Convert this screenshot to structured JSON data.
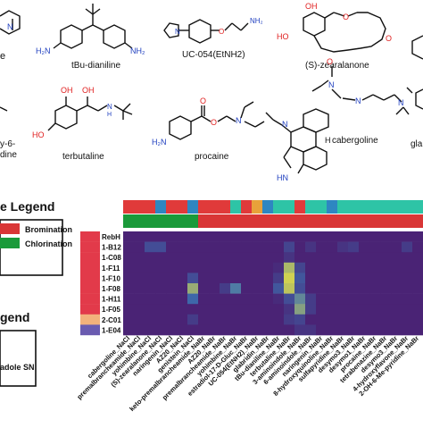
{
  "molecules": {
    "top_left_fragment": "e",
    "tbu_dianiline": {
      "name": "tBu-dianiline",
      "nh2_left": "H₂N",
      "nh2_right": "NH₂"
    },
    "uc054": {
      "name": "UC-054(EtNH2)",
      "nh2": "NH₂",
      "n": "N"
    },
    "zearalanone": {
      "name": "(S)-zearalanone",
      "oh_top": "OH",
      "oh_left": "HO",
      "o_ring": "O",
      "o_ketone": "O"
    },
    "left_fragment_bottom": {
      "line1": "y-6-",
      "line2": "dine"
    },
    "terbutaline": {
      "name": "terbutaline",
      "oh_top": "OH",
      "ho_left": "HO",
      "oh_mid": "OH",
      "nh": "N\nH"
    },
    "procaine": {
      "name": "procaine",
      "h2n": "H₂N",
      "o": "O",
      "n": "N"
    },
    "cabergoline": {
      "name": "cabergoline",
      "o": "O",
      "n_amide": "N",
      "h_amide": "H",
      "n_ring": "N",
      "n_dim": "N",
      "h_ring": "H",
      "hn": "HN"
    },
    "right_fragment": "gla"
  },
  "legends": {
    "reaction_legend_title": "e Legend",
    "bromination": "Bromination",
    "chlorination": "Chlorination",
    "enzyme_legend_title": "gend",
    "enzyme_legend_item": "adole SN"
  },
  "colors": {
    "bromination": "#d93636",
    "chlorination": "#1a9a3a",
    "heat_low": "#4b1a6e",
    "heat_mid": "#3d6fb0",
    "heat_high": "#f4e93a",
    "enzyme_red": "#e23a4a",
    "enzyme_peach": "#f2b27c",
    "enzyme_purple": "#6a5bb0"
  },
  "heatmap": {
    "row_labels": [
      "RebH",
      "1-B12",
      "1-C08",
      "1-F11",
      "1-F10",
      "1-F08",
      "1-H11",
      "1-F05",
      "2-C01",
      "1-E04"
    ],
    "row_group_colors": [
      "#e23a4a",
      "#e23a4a",
      "#e23a4a",
      "#e23a4a",
      "#e23a4a",
      "#e23a4a",
      "#e23a4a",
      "#e23a4a",
      "#f2b27c",
      "#6a5bb0"
    ],
    "column_labels": [
      "cabergoline_NaCl",
      "premalbrancheamide_NaCl",
      "yohimbine_NaCl",
      "(S)-zearalanone_NaCl",
      "naringenin_NaCl",
      "AZ20_NaCl",
      "genistein_NaCl",
      "keto-premalbrancheamide_NaBr",
      "AZ20_NaBr",
      "premalbrancheamide_NaBr",
      "yohimbine_NaBr",
      "estradiol-17-D-Gluc_NaBr",
      "UC-054(EtNH2)_NaBr",
      "glabridin_NaBr",
      "tBu-dianiline_NaBr",
      "terbutaline_NaBr",
      "3-aminoindole_NaBr",
      "6-aminoindole_NaBr",
      "naringenin_NaBr",
      "8-hydroxyquinoline_NaBr",
      "sulfapyridine_NaBr",
      "desymo3_NaBr",
      "desymo1_NaBr",
      "procaine_NaBr",
      "tetrabenazine_NaBr",
      "desymo3_NaBr",
      "4-hydroxyflavone_NaBr",
      "2-OH-6-Me-pyridine_NaBr"
    ],
    "reaction_row": [
      "C",
      "C",
      "C",
      "C",
      "C",
      "C",
      "C",
      "B",
      "B",
      "B",
      "B",
      "B",
      "B",
      "B",
      "B",
      "B",
      "B",
      "B",
      "B",
      "B",
      "B",
      "B",
      "B",
      "B",
      "B",
      "B",
      "B",
      "B"
    ],
    "enzyme_row": [
      "#e03a3a",
      "#e03a3a",
      "#e03a3a",
      "#2e86c1",
      "#e03a3a",
      "#e03a3a",
      "#2e86c1",
      "#e03a3a",
      "#e03a3a",
      "#e03a3a",
      "#2ec4a6",
      "#e03a3a",
      "#e8a13a",
      "#2e86c1",
      "#2ec4a6",
      "#2ec4a6",
      "#e03a3a",
      "#2ec4a6",
      "#2ec4a6",
      "#2e86c1",
      "#2ec4a6",
      "#2ec4a6",
      "#2ec4a6",
      "#2ec4a6",
      "#2ec4a6",
      "#2ec4a6",
      "#2ec4a6",
      "#2ec4a6"
    ],
    "values": [
      [
        0.05,
        0.05,
        0.05,
        0.05,
        0.05,
        0.05,
        0.05,
        0.05,
        0.05,
        0.05,
        0.05,
        0.05,
        0.05,
        0.05,
        0.05,
        0.05,
        0.05,
        0.05,
        0.05,
        0.05,
        0.05,
        0.05,
        0.05,
        0.05,
        0.05,
        0.05,
        0.05,
        0.05
      ],
      [
        0.05,
        0.05,
        0.3,
        0.3,
        0.05,
        0.05,
        0.05,
        0.05,
        0.05,
        0.05,
        0.05,
        0.05,
        0.05,
        0.05,
        0.05,
        0.25,
        0.05,
        0.15,
        0.05,
        0.05,
        0.15,
        0.2,
        0.05,
        0.05,
        0.05,
        0.05,
        0.2,
        0.05
      ],
      [
        0.05,
        0.05,
        0.05,
        0.05,
        0.05,
        0.05,
        0.05,
        0.05,
        0.05,
        0.05,
        0.05,
        0.05,
        0.05,
        0.05,
        0.05,
        0.15,
        0.05,
        0.05,
        0.05,
        0.05,
        0.05,
        0.05,
        0.05,
        0.05,
        0.05,
        0.05,
        0.05,
        0.05
      ],
      [
        0.05,
        0.05,
        0.05,
        0.05,
        0.05,
        0.05,
        0.05,
        0.05,
        0.05,
        0.05,
        0.05,
        0.05,
        0.05,
        0.05,
        0.1,
        0.8,
        0.25,
        0.05,
        0.05,
        0.05,
        0.05,
        0.05,
        0.05,
        0.05,
        0.05,
        0.05,
        0.05,
        0.05
      ],
      [
        0.05,
        0.05,
        0.05,
        0.05,
        0.05,
        0.05,
        0.3,
        0.05,
        0.05,
        0.05,
        0.05,
        0.05,
        0.05,
        0.05,
        0.2,
        0.9,
        0.35,
        0.05,
        0.05,
        0.05,
        0.05,
        0.05,
        0.05,
        0.05,
        0.05,
        0.05,
        0.05,
        0.05
      ],
      [
        0.05,
        0.05,
        0.05,
        0.05,
        0.05,
        0.05,
        0.75,
        0.05,
        0.05,
        0.2,
        0.55,
        0.05,
        0.05,
        0.05,
        0.35,
        0.85,
        0.3,
        0.05,
        0.05,
        0.05,
        0.05,
        0.05,
        0.05,
        0.05,
        0.05,
        0.05,
        0.05,
        0.05
      ],
      [
        0.05,
        0.05,
        0.05,
        0.05,
        0.05,
        0.05,
        0.45,
        0.05,
        0.05,
        0.05,
        0.05,
        0.05,
        0.05,
        0.05,
        0.1,
        0.3,
        0.6,
        0.2,
        0.05,
        0.05,
        0.05,
        0.05,
        0.05,
        0.05,
        0.05,
        0.05,
        0.05,
        0.05
      ],
      [
        0.05,
        0.05,
        0.05,
        0.05,
        0.05,
        0.05,
        0.05,
        0.05,
        0.05,
        0.05,
        0.05,
        0.05,
        0.05,
        0.05,
        0.05,
        0.15,
        0.7,
        0.2,
        0.05,
        0.05,
        0.05,
        0.05,
        0.05,
        0.05,
        0.05,
        0.05,
        0.05,
        0.05
      ],
      [
        0.05,
        0.05,
        0.05,
        0.05,
        0.05,
        0.05,
        0.2,
        0.05,
        0.05,
        0.05,
        0.05,
        0.05,
        0.05,
        0.05,
        0.05,
        0.2,
        0.25,
        0.05,
        0.05,
        0.05,
        0.05,
        0.05,
        0.05,
        0.05,
        0.05,
        0.05,
        0.05,
        0.05
      ],
      [
        0.05,
        0.05,
        0.05,
        0.05,
        0.05,
        0.05,
        0.05,
        0.05,
        0.05,
        0.05,
        0.05,
        0.05,
        0.05,
        0.05,
        0.05,
        0.05,
        0.15,
        0.15,
        0.05,
        0.05,
        0.05,
        0.05,
        0.05,
        0.05,
        0.05,
        0.05,
        0.05,
        0.05
      ]
    ]
  }
}
